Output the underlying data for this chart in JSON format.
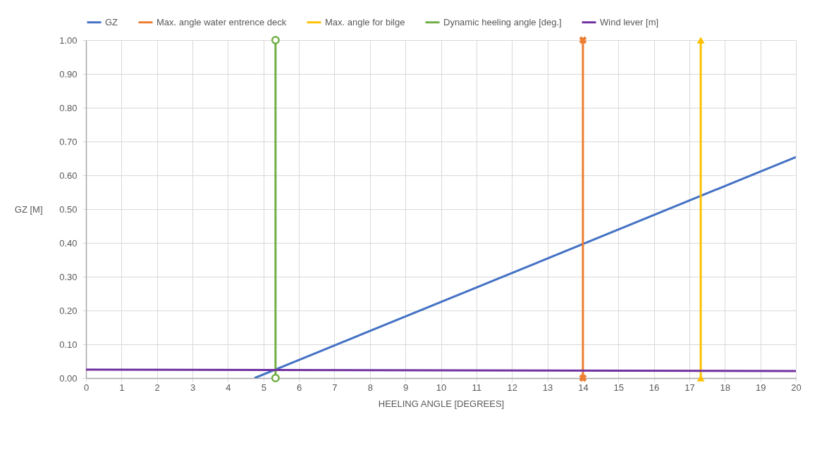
{
  "chart_data": {
    "type": "line",
    "xlabel": "HEELING  ANGLE  [DEGREES]",
    "ylabel": "GZ [M]",
    "xlim": [
      0,
      20
    ],
    "xticks": [
      0,
      1,
      2,
      3,
      4,
      5,
      6,
      7,
      8,
      9,
      10,
      11,
      12,
      13,
      14,
      15,
      16,
      17,
      18,
      19,
      20
    ],
    "ylim": [
      0,
      1
    ],
    "yticks": [
      {
        "value": 0,
        "label": "0.00"
      },
      {
        "value": 0.1,
        "label": "0.10"
      },
      {
        "value": 0.2,
        "label": "0.20"
      },
      {
        "value": 0.3,
        "label": "0.30"
      },
      {
        "value": 0.4,
        "label": "0.40"
      },
      {
        "value": 0.5,
        "label": "0.50"
      },
      {
        "value": 0.6,
        "label": "0.60"
      },
      {
        "value": 0.7,
        "label": "0.70"
      },
      {
        "value": 0.8,
        "label": "0.80"
      },
      {
        "value": 0.9,
        "label": "0.90"
      },
      {
        "value": 1,
        "label": "1.00"
      }
    ],
    "grid": true,
    "legend": "top",
    "series": [
      {
        "name": "GZ",
        "color": "#4472c4",
        "marker": "none",
        "x": [
          4.75,
          20
        ],
        "values": [
          0,
          0.654
        ]
      },
      {
        "name": "Max. angle water entrence deck",
        "color": "#ed7d31",
        "marker": "cross",
        "x": [
          14,
          14
        ],
        "values": [
          0,
          1
        ]
      },
      {
        "name": "Max. angle for bilge",
        "color": "#ffc000",
        "marker": "triangle",
        "x": [
          17.32,
          17.32
        ],
        "values": [
          0,
          1
        ]
      },
      {
        "name": "Dynamic heeling angle [deg.]",
        "color": "#70ad47",
        "marker": "circle",
        "x": [
          5.34,
          5.34
        ],
        "values": [
          0,
          1
        ]
      },
      {
        "name": "Wind lever [m]",
        "color": "#7030a0",
        "marker": "none",
        "x": [
          0,
          20
        ],
        "values": [
          0.025,
          0.021
        ]
      }
    ]
  }
}
